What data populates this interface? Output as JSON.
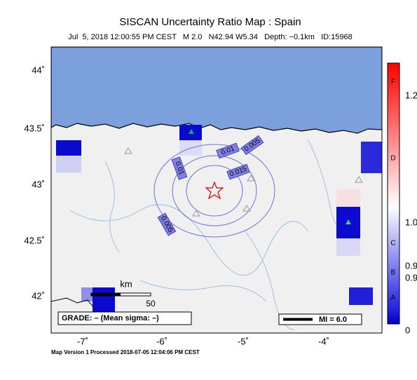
{
  "header": {
    "title": "SISCAN Uncertainty Ratio Map : Spain",
    "subtitle": "Jul  5, 2018 12:00:55 PM CEST   M 2.0   N42.94 W5.34   Depth: −0.1km   ID:15968"
  },
  "map": {
    "lat_labels": [
      "44˚",
      "43.5˚",
      "43˚",
      "42.5˚",
      "42˚"
    ],
    "lon_labels": [
      "-7˚",
      "-6˚",
      "-5˚",
      "-4˚"
    ],
    "contour_labels": [
      "0.005",
      "0.01",
      "0.015",
      "0.01",
      "0.005"
    ],
    "scale": {
      "unit": "km",
      "length": "50"
    },
    "grade": "GRADE: – (Mean sigma: –)",
    "mi": "MI = 6.0"
  },
  "colorbar": {
    "letters": [
      "F",
      "D",
      "C",
      "B",
      "A"
    ],
    "numbers": [
      "1.2",
      "1.0",
      "0.9",
      "0.9",
      "0"
    ]
  },
  "footer": "Map Version 1 Processed 2018-07-05 12:04:06 PM CEST"
}
